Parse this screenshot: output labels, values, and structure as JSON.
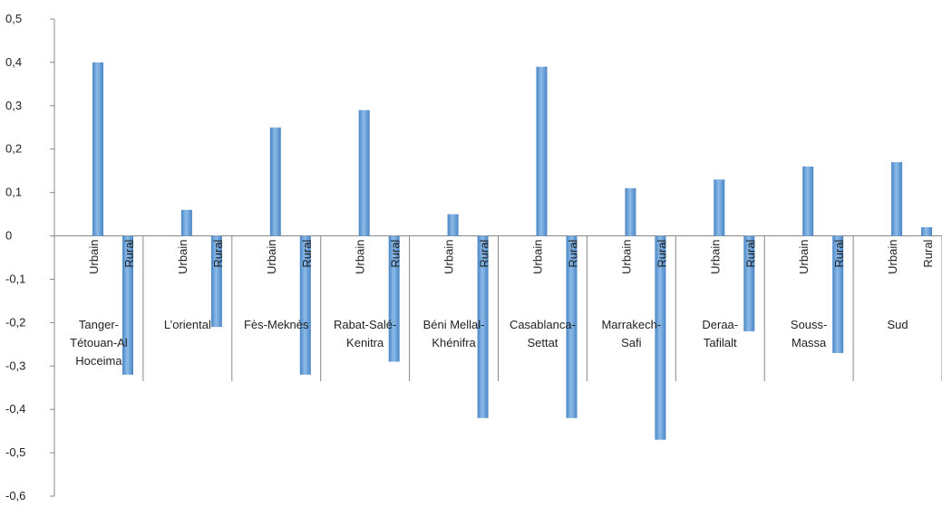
{
  "chart_data": {
    "type": "bar",
    "title": "",
    "xlabel": "",
    "ylabel": "",
    "ylim": [
      -0.6,
      0.5
    ],
    "yticks": [
      "0,5",
      "0,4",
      "0,3",
      "0,2",
      "0,1",
      "0",
      "-0,1",
      "-0,2",
      "-0,3",
      "-0,4",
      "-0,5",
      "-0,6"
    ],
    "ytick_values": [
      0.5,
      0.4,
      0.3,
      0.2,
      0.1,
      0,
      -0.1,
      -0.2,
      -0.3,
      -0.4,
      -0.5,
      -0.6
    ],
    "bar_color": "#5b9bd5",
    "grid": false,
    "legend": "none",
    "sub_categories": [
      "Urbain",
      "Rural"
    ],
    "categories": [
      {
        "lines": [
          "Tanger-",
          "Tétouan-Al",
          "Hoceima"
        ],
        "values": [
          0.4,
          -0.32
        ]
      },
      {
        "lines": [
          "L’oriental"
        ],
        "values": [
          0.06,
          -0.21
        ]
      },
      {
        "lines": [
          "Fès-Meknès"
        ],
        "values": [
          0.25,
          -0.32
        ]
      },
      {
        "lines": [
          "Rabat-Salé-",
          "Kenitra"
        ],
        "values": [
          0.29,
          -0.29
        ]
      },
      {
        "lines": [
          "Béni Mellal-",
          "Khénifra"
        ],
        "values": [
          0.05,
          -0.42
        ]
      },
      {
        "lines": [
          "Casablanca-",
          "Settat"
        ],
        "values": [
          0.39,
          -0.42
        ]
      },
      {
        "lines": [
          "Marrakech-",
          "Safi"
        ],
        "values": [
          0.11,
          -0.47
        ]
      },
      {
        "lines": [
          "Deraa-",
          "Tafilalt"
        ],
        "values": [
          0.13,
          -0.22
        ]
      },
      {
        "lines": [
          "Souss-",
          "Massa"
        ],
        "values": [
          0.16,
          -0.27
        ]
      },
      {
        "lines": [
          "Sud"
        ],
        "values": [
          0.17,
          0.02
        ]
      }
    ]
  }
}
